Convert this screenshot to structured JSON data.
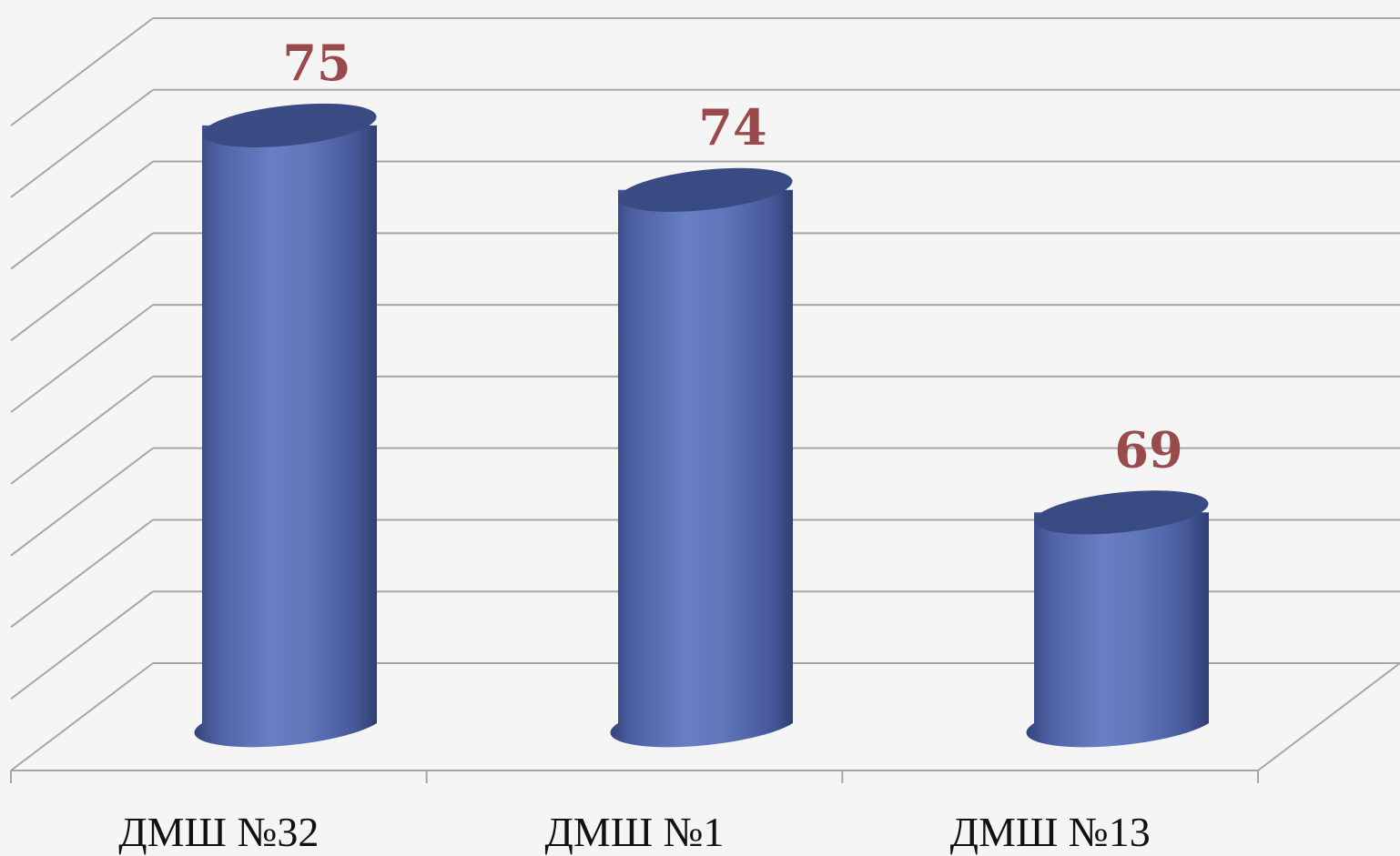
{
  "chart_data": {
    "type": "bar",
    "style": "3d-cylinder",
    "categories": [
      "ДМШ  №32",
      "ДМШ  №1",
      "ДМШ  №13"
    ],
    "values": [
      75,
      74,
      69
    ],
    "data_labels": [
      "75",
      "74",
      "69"
    ],
    "ylim": [
      66,
      76
    ],
    "grid": true,
    "legend": "none",
    "colors": {
      "bar": "#6579c0",
      "bar_dark": "#3a4b83",
      "label": "#9b4a4c",
      "grid": "#a6a6a6"
    }
  }
}
